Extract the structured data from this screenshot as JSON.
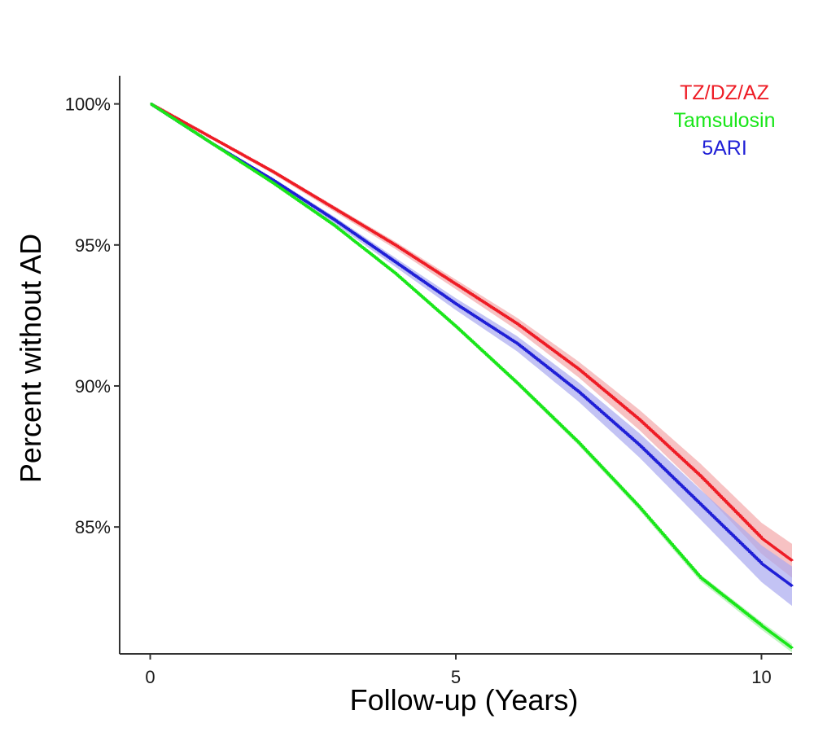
{
  "chart_data": {
    "type": "line",
    "title": "",
    "xlabel": "Follow-up (Years)",
    "ylabel": "Percent without AD",
    "xlim": [
      -0.5,
      10.5
    ],
    "ylim": [
      80.5,
      101
    ],
    "x_ticks": [
      0,
      5,
      10
    ],
    "x_tick_labels": [
      "0",
      "5",
      "10"
    ],
    "y_ticks": [
      85,
      90,
      95,
      100
    ],
    "y_tick_labels": [
      "85%",
      "90%",
      "95%",
      "100%"
    ],
    "grid": false,
    "legend_position": "top-right",
    "series": [
      {
        "name": "TZ/DZ/AZ",
        "color": "#ee1c25",
        "band_color": "#f4a8aa",
        "x": [
          0,
          1,
          2,
          3,
          4,
          5,
          6,
          7,
          8,
          9,
          10,
          10.5
        ],
        "y": [
          100,
          98.8,
          97.6,
          96.3,
          95.0,
          93.6,
          92.2,
          90.6,
          88.8,
          86.8,
          84.6,
          83.8
        ],
        "ci_halfwidth": [
          0.0,
          0.04,
          0.07,
          0.1,
          0.13,
          0.17,
          0.22,
          0.28,
          0.36,
          0.45,
          0.55,
          0.6
        ]
      },
      {
        "name": "Tamsulosin",
        "color": "#19e619",
        "band_color": "#a6f0a6",
        "x": [
          0,
          1,
          2,
          3,
          4,
          5,
          6,
          7,
          8,
          9,
          10,
          10.5
        ],
        "y": [
          100,
          98.6,
          97.2,
          95.7,
          94.0,
          92.1,
          90.1,
          88.0,
          85.7,
          83.2,
          81.5,
          80.7
        ],
        "ci_halfwidth": [
          0.0,
          0.02,
          0.03,
          0.04,
          0.05,
          0.06,
          0.07,
          0.09,
          0.1,
          0.12,
          0.14,
          0.15
        ]
      },
      {
        "name": "5ARI",
        "color": "#1f1fd6",
        "band_color": "#a9a9ef",
        "x": [
          0,
          1,
          2,
          3,
          4,
          5,
          6,
          7,
          8,
          9,
          10,
          10.5
        ],
        "y": [
          100,
          98.6,
          97.3,
          95.9,
          94.4,
          92.9,
          91.5,
          89.8,
          87.9,
          85.8,
          83.7,
          82.9
        ],
        "ci_halfwidth": [
          0.0,
          0.05,
          0.08,
          0.12,
          0.16,
          0.21,
          0.27,
          0.34,
          0.43,
          0.53,
          0.65,
          0.7
        ]
      }
    ]
  }
}
